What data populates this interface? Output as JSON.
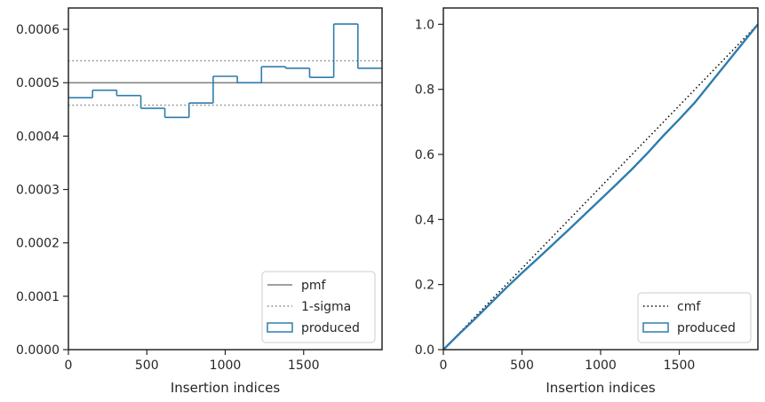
{
  "chart_data": [
    {
      "type": "histogram",
      "xlabel": "Insertion indices",
      "ylabel": "",
      "xlim": [
        0,
        2000
      ],
      "ylim": [
        0,
        0.00064
      ],
      "xticks": [
        0,
        500,
        1000,
        1500
      ],
      "xtick_labels": [
        "0",
        "500",
        "1000",
        "1500"
      ],
      "yticks": [
        0,
        0.0001,
        0.0002,
        0.0003,
        0.0004,
        0.0005,
        0.0006
      ],
      "ytick_labels": [
        "0.0000",
        "0.0001",
        "0.0002",
        "0.0003",
        "0.0004",
        "0.0005",
        "0.0006"
      ],
      "pmf": 0.0005,
      "sigma_lower": 0.000458,
      "sigma_upper": 0.000541,
      "bin_edges": [
        0,
        154,
        308,
        462,
        615,
        769,
        923,
        1077,
        1231,
        1385,
        1538,
        1692,
        1846,
        2000
      ],
      "bin_values": [
        0.000472,
        0.000486,
        0.000476,
        0.000452,
        0.000435,
        0.000462,
        0.000512,
        0.0005,
        0.00053,
        0.000527,
        0.00051,
        0.00061,
        0.000527
      ],
      "legend": {
        "location": "lower right",
        "entries": [
          {
            "label": "pmf",
            "style": "solid-gray"
          },
          {
            "label": "1-sigma",
            "style": "dotted-gray"
          },
          {
            "label": "produced",
            "style": "blue-box"
          }
        ]
      },
      "colors": {
        "produced": "#2e7dad",
        "pmf": "#808080",
        "sigma": "#808080"
      }
    },
    {
      "type": "line",
      "xlabel": "Insertion indices",
      "ylabel": "",
      "xlim": [
        0,
        2000
      ],
      "ylim": [
        0,
        1.05
      ],
      "xticks": [
        0,
        500,
        1000,
        1500
      ],
      "xtick_labels": [
        "0",
        "500",
        "1000",
        "1500"
      ],
      "yticks": [
        0,
        0.2,
        0.4,
        0.6,
        0.8,
        1.0
      ],
      "ytick_labels": [
        "0.0",
        "0.2",
        "0.4",
        "0.6",
        "0.8",
        "1.0"
      ],
      "series": [
        {
          "name": "cmf",
          "style": "dotted-black",
          "x": [
            0,
            2000
          ],
          "y": [
            0,
            1.0
          ]
        },
        {
          "name": "produced",
          "style": "blue-step",
          "x": [
            0,
            100,
            200,
            300,
            400,
            500,
            600,
            700,
            800,
            900,
            1000,
            1100,
            1200,
            1300,
            1400,
            1500,
            1600,
            1700,
            1800,
            1900,
            2000
          ],
          "y": [
            0,
            0.048,
            0.094,
            0.142,
            0.19,
            0.236,
            0.28,
            0.325,
            0.37,
            0.416,
            0.462,
            0.508,
            0.555,
            0.605,
            0.658,
            0.708,
            0.76,
            0.82,
            0.88,
            0.94,
            1.0
          ]
        }
      ],
      "legend": {
        "location": "lower right",
        "entries": [
          {
            "label": "cmf",
            "style": "dotted-black"
          },
          {
            "label": "produced",
            "style": "blue-box"
          }
        ]
      },
      "colors": {
        "produced": "#2e7dad",
        "cmf": "#000000"
      }
    }
  ]
}
